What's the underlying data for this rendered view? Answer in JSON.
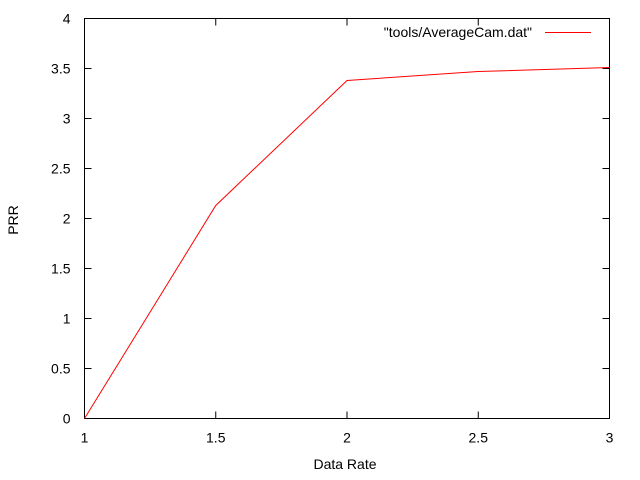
{
  "chart_data": {
    "type": "line",
    "title": "",
    "xlabel": "Data Rate",
    "ylabel": "PRR",
    "xlim": [
      1,
      3
    ],
    "ylim": [
      0,
      4
    ],
    "xticks": [
      1,
      1.5,
      2,
      2.5,
      3
    ],
    "yticks": [
      0,
      0.5,
      1,
      1.5,
      2,
      2.5,
      3,
      3.5,
      4
    ],
    "xtick_labels": [
      "1",
      "1.5",
      "2",
      "2.5",
      "3"
    ],
    "ytick_labels": [
      "0",
      "0.5",
      "1",
      "1.5",
      "2",
      "2.5",
      "3",
      "3.5",
      "4"
    ],
    "grid": false,
    "legend_position": "top-right",
    "series": [
      {
        "name": "\"tools/AverageCam.dat\"",
        "color": "#ff0000",
        "x": [
          1,
          1.5,
          2,
          2.5,
          3
        ],
        "y": [
          0,
          2.13,
          3.38,
          3.47,
          3.51
        ]
      }
    ]
  }
}
